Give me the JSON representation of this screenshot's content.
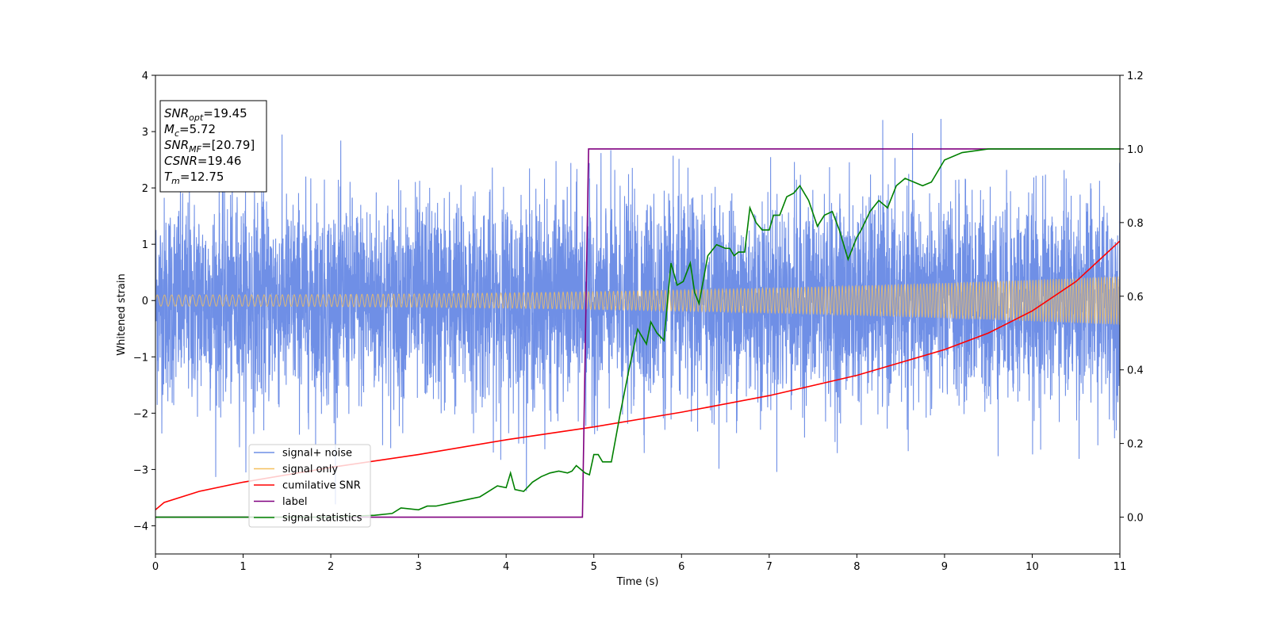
{
  "chart_data": {
    "type": "line",
    "xlabel": "Time (s)",
    "ylabel": "Whitened strain",
    "xlim": [
      0,
      11
    ],
    "ylim": [
      -4.5,
      4
    ],
    "y2lim": [
      -0.1,
      1.2
    ],
    "x_ticks": [
      "0",
      "1",
      "2",
      "3",
      "4",
      "5",
      "6",
      "7",
      "8",
      "9",
      "10",
      "11"
    ],
    "y_ticks": [
      "−4",
      "−3",
      "−2",
      "−1",
      "0",
      "1",
      "2",
      "3",
      "4"
    ],
    "y2_ticks": [
      "0.0",
      "0.2",
      "0.4",
      "0.6",
      "0.8",
      "1.0",
      "1.2"
    ],
    "grid": false,
    "legend_position": "lower-left",
    "info_box": {
      "lines": [
        {
          "base": "SNR",
          "sub": "opt",
          "rest": "=19.45"
        },
        {
          "base": "M",
          "sub": "c",
          "rest": "=5.72"
        },
        {
          "base": "SNR",
          "sub": "MF",
          "rest": "=[20.79]"
        },
        {
          "base": "CSNR",
          "sub": "",
          "rest": "=19.46"
        },
        {
          "base": "T",
          "sub": "m",
          "rest": "=12.75"
        }
      ]
    },
    "series": [
      {
        "name": "signal+ noise",
        "color": "#6f8fe6",
        "axis": "left",
        "kind": "noise",
        "std": 0.9,
        "y_range_observed": [
          -4.15,
          3.62
        ]
      },
      {
        "name": "signal only",
        "color": "#f5c05f",
        "axis": "left",
        "kind": "chirp",
        "amplitude_start": 0.1,
        "amplitude_end": 0.43
      },
      {
        "name": "cumilative SNR",
        "color": "#ff0000",
        "axis": "right",
        "x": [
          0,
          0.1,
          0.5,
          1,
          2,
          3,
          4,
          5,
          6,
          7,
          8,
          9,
          9.5,
          10,
          10.5,
          11
        ],
        "y": [
          0.02,
          0.04,
          0.07,
          0.095,
          0.135,
          0.17,
          0.21,
          0.245,
          0.285,
          0.33,
          0.385,
          0.455,
          0.5,
          0.56,
          0.64,
          0.75
        ]
      },
      {
        "name": "label",
        "color": "#800080",
        "axis": "right",
        "x": [
          0,
          4.87,
          4.94,
          11
        ],
        "y": [
          0.0,
          0.0,
          1.0,
          1.0
        ]
      },
      {
        "name": "signal statistics",
        "color": "#008000",
        "axis": "right",
        "x": [
          0,
          1,
          2,
          2.5,
          2.7,
          2.8,
          3.0,
          3.1,
          3.2,
          3.4,
          3.6,
          3.7,
          3.8,
          3.9,
          4.0,
          4.05,
          4.1,
          4.2,
          4.3,
          4.4,
          4.5,
          4.6,
          4.7,
          4.75,
          4.8,
          4.9,
          4.95,
          5.0,
          5.05,
          5.1,
          5.2,
          5.3,
          5.4,
          5.5,
          5.6,
          5.65,
          5.72,
          5.8,
          5.88,
          5.95,
          6.02,
          6.1,
          6.15,
          6.2,
          6.3,
          6.4,
          6.5,
          6.55,
          6.6,
          6.65,
          6.72,
          6.78,
          6.85,
          6.92,
          7.0,
          7.05,
          7.12,
          7.2,
          7.28,
          7.35,
          7.45,
          7.55,
          7.63,
          7.72,
          7.8,
          7.9,
          8.0,
          8.05,
          8.15,
          8.25,
          8.35,
          8.45,
          8.55,
          8.65,
          8.75,
          8.85,
          9.0,
          9.2,
          9.5,
          10,
          11
        ],
        "y": [
          0.0,
          0.0,
          0.0,
          0.005,
          0.01,
          0.025,
          0.02,
          0.03,
          0.03,
          0.04,
          0.05,
          0.055,
          0.07,
          0.085,
          0.08,
          0.12,
          0.075,
          0.07,
          0.095,
          0.11,
          0.12,
          0.125,
          0.12,
          0.125,
          0.14,
          0.12,
          0.115,
          0.17,
          0.17,
          0.15,
          0.15,
          0.28,
          0.4,
          0.51,
          0.47,
          0.53,
          0.5,
          0.48,
          0.69,
          0.63,
          0.64,
          0.69,
          0.61,
          0.58,
          0.71,
          0.74,
          0.73,
          0.73,
          0.71,
          0.72,
          0.72,
          0.84,
          0.8,
          0.78,
          0.78,
          0.82,
          0.82,
          0.87,
          0.88,
          0.9,
          0.86,
          0.79,
          0.82,
          0.83,
          0.78,
          0.7,
          0.76,
          0.78,
          0.83,
          0.86,
          0.84,
          0.9,
          0.92,
          0.91,
          0.9,
          0.91,
          0.97,
          0.99,
          1.0,
          1.0,
          1.0
        ]
      }
    ]
  }
}
